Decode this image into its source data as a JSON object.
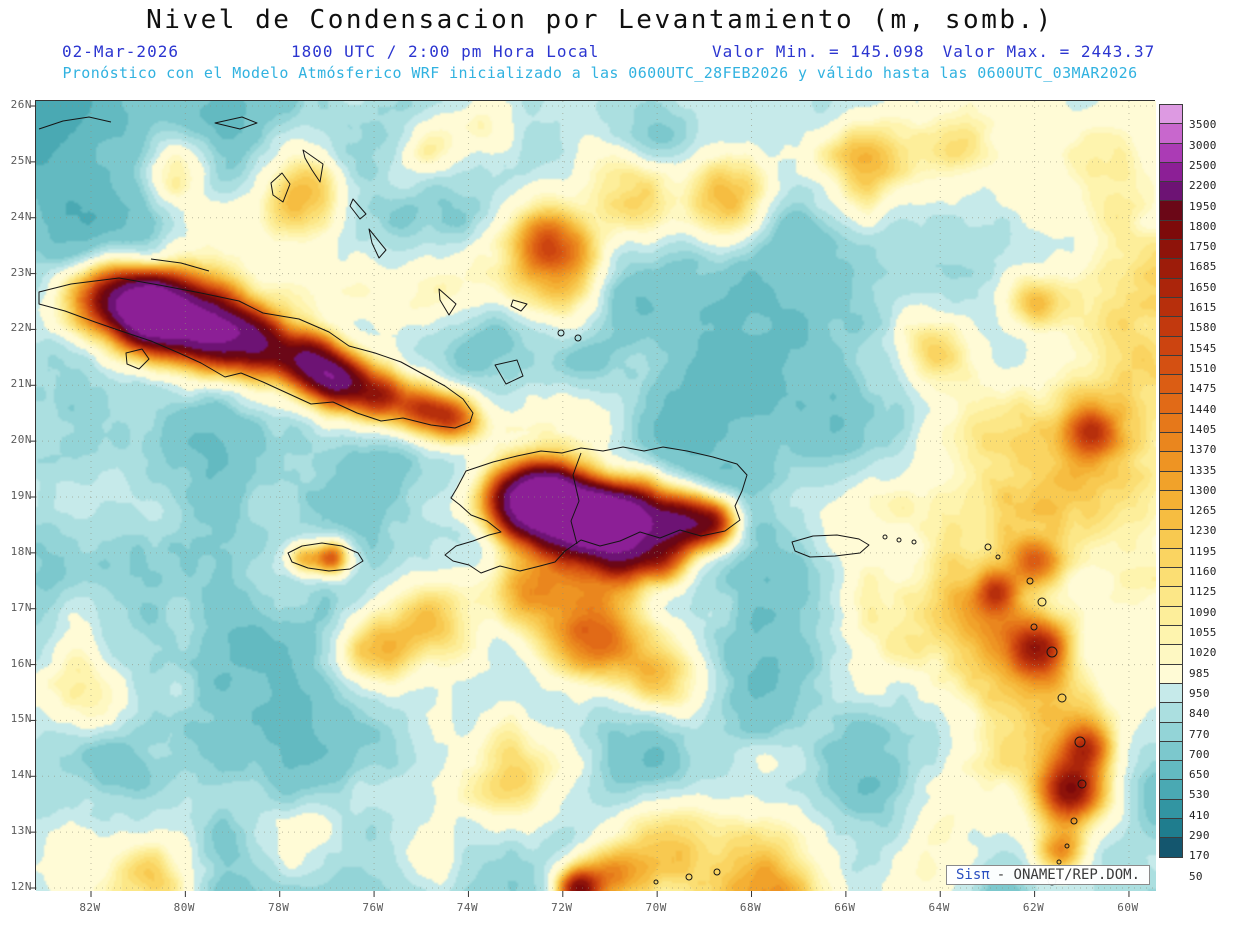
{
  "title": "Nivel de Condensacion por Levantamiento (m, somb.)",
  "header": {
    "date": "02-Mar-2026",
    "time": "1800 UTC / 2:00 pm Hora Local",
    "min_label": "Valor Min. = 145.098",
    "max_label": "Valor Max. = 2443.37",
    "forecast_line": "Pronóstico con el Modelo Atmósferico WRF inicializado a las 0600UTC_28FEB2026 y válido hasta las  0600UTC_03MAR2026"
  },
  "colors": {
    "header_blue": "#2b35d0",
    "subtitle_cyan": "#31b2e0",
    "title_black": "#101010"
  },
  "map": {
    "lat_labels": [
      "26N",
      "25N",
      "24N",
      "23N",
      "22N",
      "21N",
      "20N",
      "19N",
      "18N",
      "17N",
      "16N",
      "15N",
      "14N",
      "13N",
      "12N"
    ],
    "lon_labels": [
      "82W",
      "80W",
      "78W",
      "76W",
      "74W",
      "72W",
      "70W",
      "68W",
      "66W",
      "64W",
      "62W",
      "60W"
    ]
  },
  "colorbar": {
    "labels": [
      "3500",
      "3000",
      "2500",
      "2200",
      "1950",
      "1800",
      "1750",
      "1685",
      "1650",
      "1615",
      "1580",
      "1545",
      "1510",
      "1475",
      "1440",
      "1405",
      "1370",
      "1335",
      "1300",
      "1265",
      "1230",
      "1195",
      "1160",
      "1125",
      "1090",
      "1055",
      "1020",
      "985",
      "950",
      "840",
      "770",
      "700",
      "650",
      "530",
      "410",
      "290",
      "170",
      "50"
    ],
    "colors_top_down": [
      "#dd9ae2",
      "#c867cd",
      "#ab3bb5",
      "#8c1f96",
      "#6d1374",
      "#6b0717",
      "#7d0a0a",
      "#8e130a",
      "#9d1c0a",
      "#ab250b",
      "#b72f0c",
      "#c2390e",
      "#cc4410",
      "#d45012",
      "#db5d14",
      "#e16a17",
      "#e6781a",
      "#ea861e",
      "#ee9423",
      "#f1a22a",
      "#f4b034",
      "#f6bd41",
      "#f8c950",
      "#fad461",
      "#fbde73",
      "#fce787",
      "#fdee9a",
      "#fef4ae",
      "#fef8c2",
      "#fffbd6",
      "#c6eaea",
      "#abdfe0",
      "#93d4d7",
      "#7cc8cd",
      "#63bac1",
      "#4aa9b3",
      "#3295a2",
      "#1f7d8e",
      "#14566e"
    ]
  },
  "watermark": {
    "brand": "Sisπ",
    "org": "- ONAMET/REP.DOM."
  },
  "chart_data": {
    "type": "heatmap",
    "variable": "Nivel de Condensacion por Levantamiento",
    "units": "m, somb.",
    "date": "02-Mar-2026",
    "valid_time": "1800 UTC / 2:00 pm Hora Local",
    "value_min": 145.098,
    "value_max": 2443.37,
    "model": "WRF",
    "initialized": "0600UTC_28FEB2026",
    "valid_until": "0600UTC_03MAR2026",
    "lat_range": [
      "12N",
      "26N"
    ],
    "lon_range": [
      "82W",
      "60W"
    ],
    "levels": [
      50,
      170,
      290,
      410,
      530,
      650,
      700,
      770,
      840,
      950,
      985,
      1020,
      1055,
      1090,
      1125,
      1160,
      1195,
      1230,
      1265,
      1300,
      1335,
      1370,
      1405,
      1440,
      1475,
      1510,
      1545,
      1580,
      1615,
      1650,
      1685,
      1750,
      1800,
      1950,
      2200,
      2500,
      3000,
      3500
    ],
    "legend_position": "right",
    "grid": "dotted, every 1° latitude / 2° longitude"
  }
}
